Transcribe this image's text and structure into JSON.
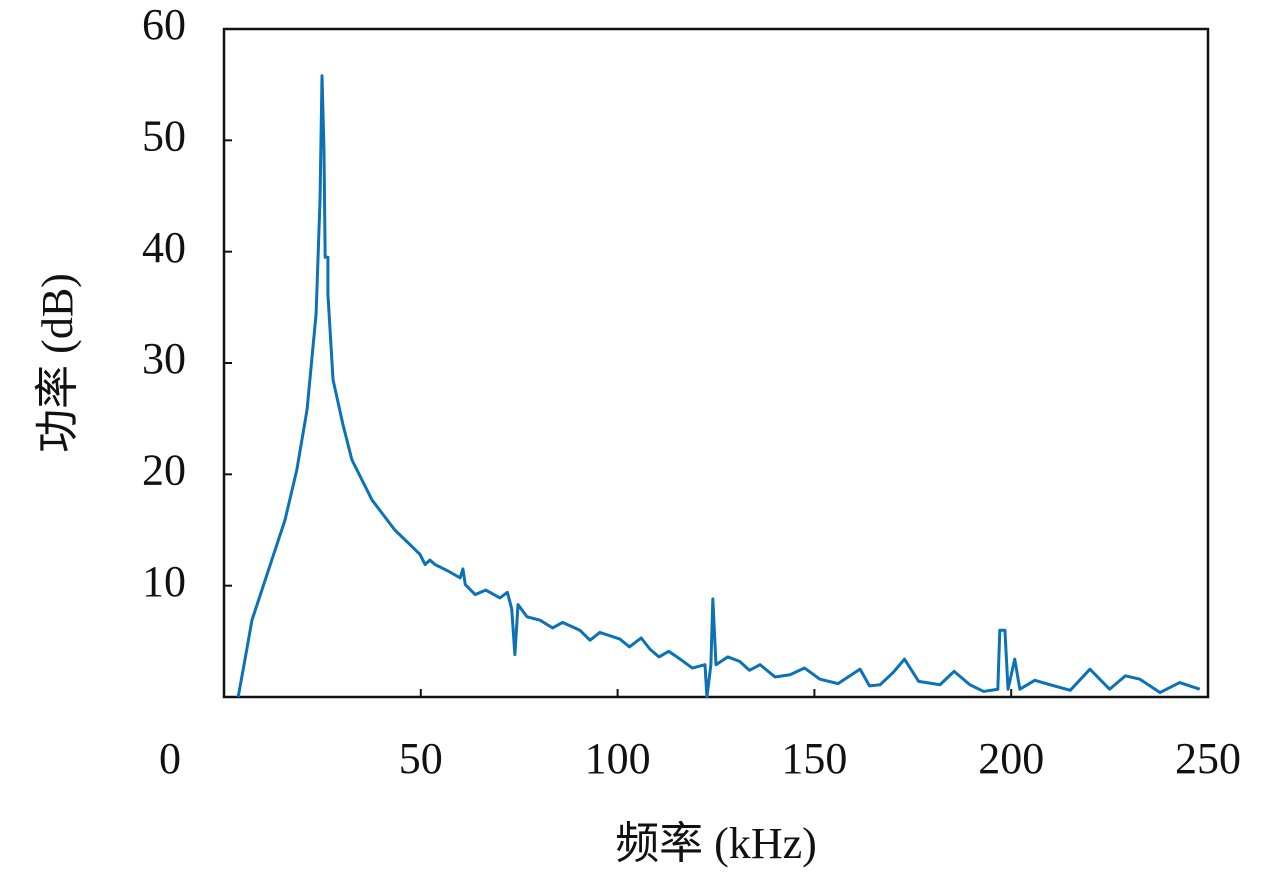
{
  "chart_data": {
    "type": "line",
    "xlabel": "频率 (kHz)",
    "ylabel": "功率 (dB)",
    "xlim": [
      0,
      250
    ],
    "xticks": [
      0,
      50,
      100,
      150,
      200,
      250
    ],
    "ylim": [
      0,
      60
    ],
    "yticks": [
      10,
      20,
      30,
      40,
      50,
      60
    ],
    "grid": false,
    "series": [
      {
        "name": "功率",
        "color": "#0b72b5",
        "x": [
          3.6,
          5.3,
          7.1,
          11.3,
          15.5,
          18.5,
          21.1,
          23.4,
          24.4,
          24.9,
          25.4,
          25.7,
          26.4,
          26.4,
          27.7,
          30.2,
          32.5,
          37.6,
          43.4,
          47.8,
          49.8,
          51.1,
          52.3,
          53.6,
          57.0,
          60.0,
          60.7,
          61.3,
          63.8,
          66.5,
          70.1,
          72.0,
          73.1,
          73.9,
          74.7,
          77.0,
          80.3,
          83.5,
          86.0,
          90.4,
          93.0,
          95.5,
          100.6,
          103.0,
          106.0,
          108.2,
          110.5,
          113.0,
          115.9,
          119.0,
          122.2,
          122.7,
          123.7,
          124.2,
          125.0,
          128.0,
          131.0,
          133.5,
          136.2,
          140.0,
          143.8,
          147.5,
          151.4,
          156.0,
          161.6,
          164.0,
          166.7,
          170.0,
          172.9,
          176.5,
          181.9,
          185.5,
          189.5,
          193.0,
          196.6,
          197.1,
          198.4,
          199.2,
          200.9,
          202.2,
          206.0,
          209.9,
          215.0,
          220.0,
          225.0,
          229.0,
          232.7,
          237.8,
          242.8,
          247.9
        ],
        "values": [
          0,
          3.3,
          6.9,
          11.4,
          15.9,
          20.4,
          25.8,
          34.4,
          44.7,
          55.8,
          49.2,
          39.5,
          39.5,
          36.2,
          28.5,
          24.5,
          21.3,
          17.7,
          15.0,
          13.5,
          12.8,
          11.9,
          12.3,
          11.9,
          11.3,
          10.7,
          11.5,
          10.1,
          9.2,
          9.6,
          8.9,
          9.4,
          7.9,
          3.8,
          8.3,
          7.2,
          6.9,
          6.2,
          6.7,
          6.0,
          5.1,
          5.8,
          5.2,
          4.5,
          5.3,
          4.3,
          3.6,
          4.1,
          3.4,
          2.6,
          2.9,
          0,
          2.9,
          8.8,
          2.9,
          3.6,
          3.2,
          2.4,
          2.9,
          1.8,
          2.0,
          2.6,
          1.6,
          1.2,
          2.5,
          1.0,
          1.1,
          2.2,
          3.4,
          1.4,
          1.1,
          2.3,
          1.1,
          0.5,
          0.7,
          6.0,
          6.0,
          0.7,
          3.4,
          0.7,
          1.5,
          1.1,
          0.6,
          2.5,
          0.7,
          1.9,
          1.6,
          0.4,
          1.3,
          0.7
        ]
      }
    ]
  }
}
